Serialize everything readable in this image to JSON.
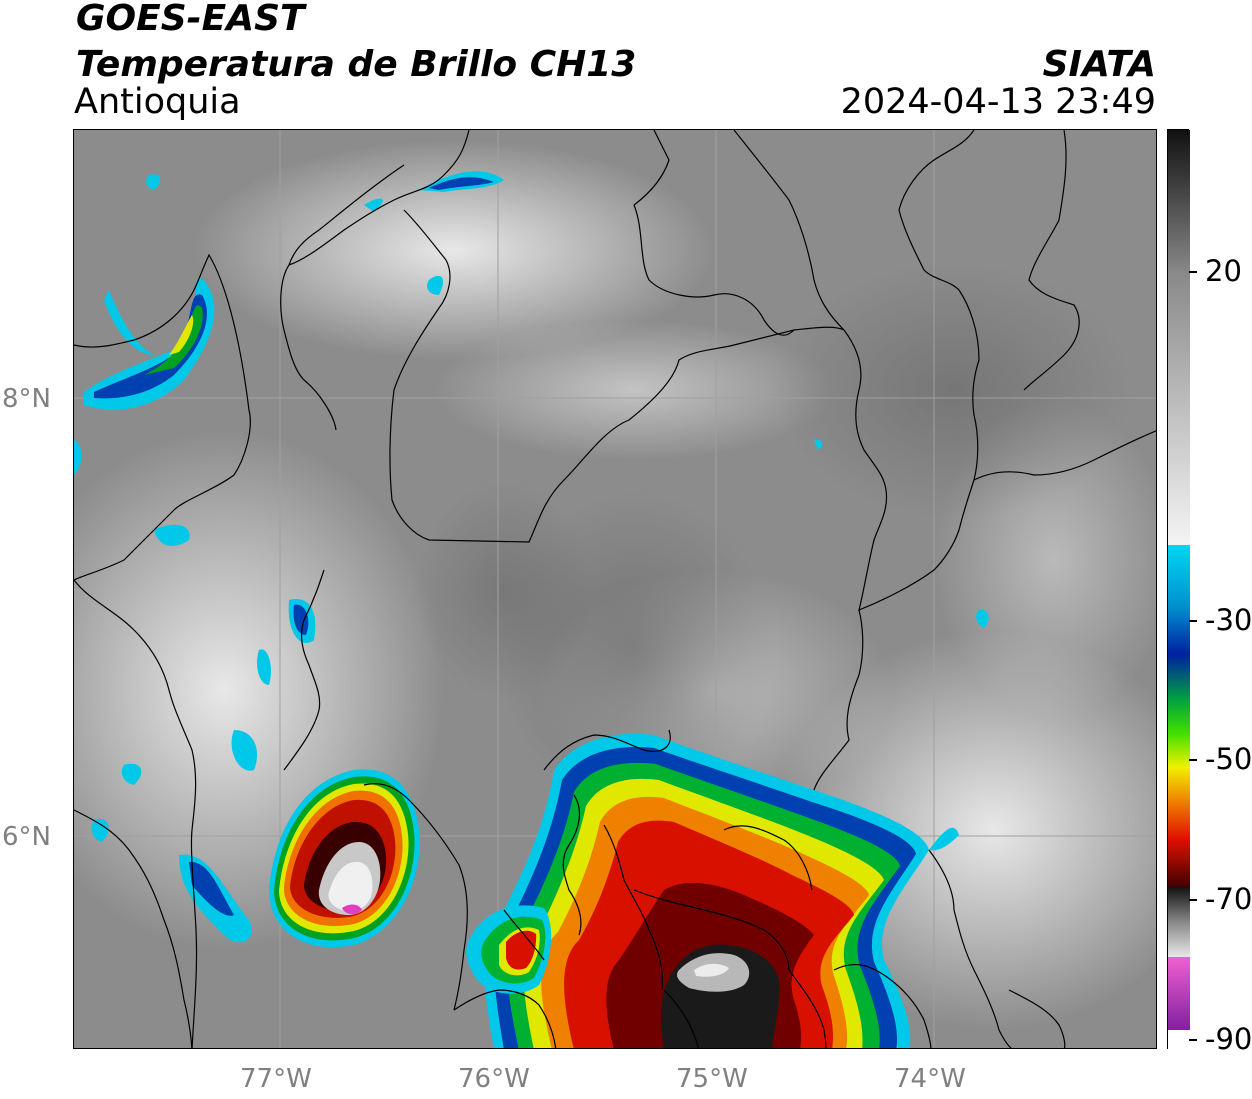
{
  "header": {
    "satellite": "GOES-EAST",
    "product": "Temperatura de Brillo CH13",
    "region": "Antioquia",
    "agency": "SIATA",
    "datetime": "2024-04-13 23:49"
  },
  "axes": {
    "lat_labels": [
      "8°N",
      "6°N"
    ],
    "lon_labels": [
      "77°W",
      "76°W",
      "75°W",
      "74°W"
    ]
  },
  "colorbar": {
    "ticks": [
      "20",
      "-30",
      "-50",
      "-70",
      "-90"
    ],
    "colors": {
      "black": "#111111",
      "gray": "#8a8a8a",
      "white": "#f4f4f4",
      "cyan": "#00c8e8",
      "blue": "#0030a0",
      "green": "#00a020",
      "yellow": "#f0f000",
      "orange": "#f08000",
      "red": "#e01000",
      "darkred": "#600000",
      "magenta": "#e040c0",
      "purple": "#8020a0"
    }
  }
}
